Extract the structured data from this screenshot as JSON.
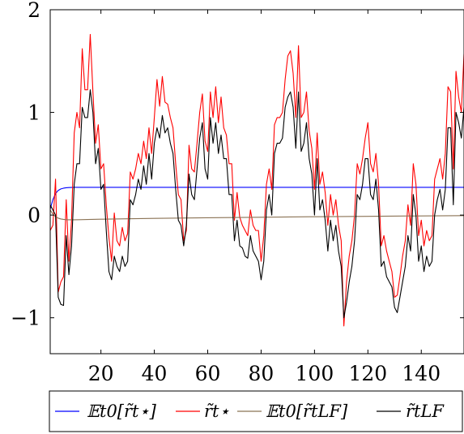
{
  "chart_data": {
    "type": "line",
    "title": "",
    "xlabel": "",
    "ylabel": "",
    "xlim": [
      1,
      156
    ],
    "ylim": [
      -1.35,
      2.0
    ],
    "grid": false,
    "legend_position": "bottom",
    "x_ticks": [
      20,
      40,
      60,
      80,
      100,
      120,
      140
    ],
    "y_ticks": [
      -1,
      0,
      1,
      2
    ],
    "x_tick_labels": [
      "20",
      "40",
      "60",
      "80",
      "100",
      "120",
      "140"
    ],
    "y_tick_labels": [
      "−1",
      "0",
      "1",
      "2"
    ],
    "series": [
      {
        "name": "𝔼t0[r̃t⋆]",
        "color": "#0000ff",
        "x": [
          1,
          2,
          3,
          4,
          5,
          6,
          7,
          8,
          10,
          15,
          20,
          156
        ],
        "y": [
          0.06,
          0.15,
          0.21,
          0.24,
          0.255,
          0.262,
          0.266,
          0.268,
          0.27,
          0.27,
          0.27,
          0.27
        ]
      },
      {
        "name": "r̃t⋆",
        "color": "#ff0000",
        "x": [
          1,
          2,
          3,
          4,
          5,
          6,
          7,
          8,
          9,
          10,
          11,
          12,
          13,
          14,
          15,
          16,
          17,
          18,
          19,
          20,
          21,
          22,
          23,
          24,
          25,
          26,
          27,
          28,
          29,
          30,
          31,
          32,
          33,
          34,
          35,
          36,
          37,
          38,
          39,
          40,
          41,
          42,
          43,
          44,
          45,
          46,
          47,
          48,
          49,
          50,
          51,
          52,
          53,
          54,
          55,
          56,
          57,
          58,
          59,
          60,
          61,
          62,
          63,
          64,
          65,
          66,
          67,
          68,
          69,
          70,
          71,
          72,
          73,
          74,
          75,
          76,
          77,
          78,
          79,
          80,
          81,
          82,
          83,
          84,
          85,
          86,
          87,
          88,
          89,
          90,
          91,
          92,
          93,
          94,
          95,
          96,
          97,
          98,
          99,
          100,
          101,
          102,
          103,
          104,
          105,
          106,
          107,
          108,
          109,
          110,
          111,
          112,
          113,
          114,
          115,
          116,
          117,
          118,
          119,
          120,
          121,
          122,
          123,
          124,
          125,
          126,
          127,
          128,
          129,
          130,
          131,
          132,
          133,
          134,
          135,
          136,
          137,
          138,
          139,
          140,
          141,
          142,
          143,
          144,
          145,
          146,
          147,
          148,
          149,
          150,
          151,
          152,
          153,
          154,
          155,
          156
        ],
        "y": [
          -0.15,
          -0.1,
          0.35,
          -0.75,
          -0.65,
          -0.6,
          0.15,
          -0.45,
          -0.05,
          0.8,
          1.0,
          0.85,
          1.62,
          1.22,
          1.22,
          1.76,
          1.2,
          0.7,
          0.88,
          0.45,
          0.5,
          0.1,
          -0.22,
          -0.45,
          0.02,
          -0.25,
          -0.3,
          -0.12,
          -0.25,
          -0.18,
          0.42,
          0.35,
          0.45,
          0.6,
          0.5,
          0.72,
          0.55,
          0.85,
          0.6,
          0.95,
          1.32,
          1.06,
          1.35,
          1.1,
          1.08,
          0.95,
          0.85,
          0.5,
          0.2,
          0.15,
          -0.25,
          -0.15,
          0.68,
          0.45,
          0.42,
          0.7,
          1.0,
          1.18,
          0.72,
          0.62,
          1.2,
          0.95,
          1.25,
          0.9,
          1.15,
          0.85,
          0.78,
          0.5,
          0.5,
          -0.05,
          0.22,
          -0.02,
          -0.1,
          -0.15,
          -0.2,
          0.05,
          -0.1,
          -0.15,
          -0.15,
          -0.45,
          -0.2,
          0.3,
          0.45,
          0.25,
          0.88,
          0.95,
          0.95,
          1.0,
          1.32,
          1.55,
          1.6,
          1.38,
          0.95,
          1.65,
          0.95,
          1.0,
          1.2,
          0.82,
          0.65,
          0.25,
          0.8,
          0.3,
          0.42,
          0.22,
          -0.1,
          0.2,
          0.0,
          0.15,
          -0.1,
          -0.25,
          -1.08,
          -0.65,
          -0.4,
          -0.25,
          0.0,
          0.5,
          0.4,
          0.55,
          0.75,
          0.9,
          0.5,
          0.42,
          0.6,
          0.3,
          -0.3,
          -0.2,
          -0.35,
          -0.45,
          -0.55,
          -0.8,
          -0.78,
          -0.6,
          -0.4,
          -0.25,
          0.1,
          -0.1,
          0.5,
          0.3,
          -0.2,
          -0.05,
          -0.3,
          -0.15,
          -0.25,
          -0.2,
          0.35,
          0.45,
          0.55,
          0.35,
          0.6,
          1.25,
          1.2,
          0.45,
          1.4,
          1.15,
          1.0,
          1.57
        ]
      },
      {
        "name": "𝔼t0[r̃tLF]",
        "color": "#8b7355",
        "x": [
          1,
          2,
          3,
          4,
          5,
          6,
          7,
          8,
          10,
          12,
          15,
          20,
          30,
          40,
          60,
          80,
          100,
          120,
          140,
          156
        ],
        "y": [
          0.05,
          0.01,
          -0.015,
          -0.03,
          -0.038,
          -0.042,
          -0.045,
          -0.046,
          -0.046,
          -0.045,
          -0.043,
          -0.04,
          -0.036,
          -0.032,
          -0.026,
          -0.021,
          -0.016,
          -0.012,
          -0.008,
          -0.005
        ]
      },
      {
        "name": "r̃tLF",
        "color": "#000000",
        "x": [
          1,
          2,
          3,
          4,
          5,
          6,
          7,
          8,
          9,
          10,
          11,
          12,
          13,
          14,
          15,
          16,
          17,
          18,
          19,
          20,
          21,
          22,
          23,
          24,
          25,
          26,
          27,
          28,
          29,
          30,
          31,
          32,
          33,
          34,
          35,
          36,
          37,
          38,
          39,
          40,
          41,
          42,
          43,
          44,
          45,
          46,
          47,
          48,
          49,
          50,
          51,
          52,
          53,
          54,
          55,
          56,
          57,
          58,
          59,
          60,
          61,
          62,
          63,
          64,
          65,
          66,
          67,
          68,
          69,
          70,
          71,
          72,
          73,
          74,
          75,
          76,
          77,
          78,
          79,
          80,
          81,
          82,
          83,
          84,
          85,
          86,
          87,
          88,
          89,
          90,
          91,
          92,
          93,
          94,
          95,
          96,
          97,
          98,
          99,
          100,
          101,
          102,
          103,
          104,
          105,
          106,
          107,
          108,
          109,
          110,
          111,
          112,
          113,
          114,
          115,
          116,
          117,
          118,
          119,
          120,
          121,
          122,
          123,
          124,
          125,
          126,
          127,
          128,
          129,
          130,
          131,
          132,
          133,
          134,
          135,
          136,
          137,
          138,
          139,
          140,
          141,
          142,
          143,
          144,
          145,
          146,
          147,
          148,
          149,
          150,
          151,
          152,
          153,
          154,
          155,
          156
        ],
        "y": [
          0.1,
          0.05,
          0.0,
          -0.8,
          -0.87,
          -0.88,
          -0.2,
          -0.58,
          -0.3,
          0.3,
          0.5,
          0.5,
          1.05,
          0.95,
          0.95,
          1.22,
          1.0,
          0.5,
          0.65,
          0.25,
          0.3,
          -0.15,
          -0.55,
          -0.63,
          -0.4,
          -0.5,
          -0.55,
          -0.4,
          -0.5,
          -0.45,
          0.15,
          0.1,
          0.2,
          0.35,
          0.25,
          0.48,
          0.3,
          0.6,
          0.35,
          0.7,
          0.85,
          0.75,
          0.97,
          0.8,
          0.85,
          0.7,
          0.6,
          0.25,
          -0.05,
          -0.1,
          -0.3,
          -0.1,
          0.4,
          0.2,
          0.15,
          0.45,
          0.75,
          0.9,
          0.45,
          0.35,
          0.95,
          0.7,
          0.9,
          0.6,
          0.78,
          0.55,
          0.55,
          0.2,
          0.2,
          -0.25,
          -0.05,
          -0.3,
          -0.32,
          -0.4,
          -0.42,
          -0.2,
          -0.35,
          -0.4,
          -0.45,
          -0.63,
          -0.45,
          0.05,
          0.2,
          0.0,
          0.6,
          0.7,
          0.7,
          0.75,
          1.05,
          1.15,
          1.2,
          1.05,
          0.65,
          1.2,
          0.62,
          0.7,
          0.9,
          0.55,
          0.4,
          0.0,
          0.55,
          0.05,
          0.15,
          -0.05,
          -0.35,
          -0.05,
          -0.25,
          -0.1,
          -0.35,
          -0.5,
          -1.0,
          -0.85,
          -0.65,
          -0.5,
          -0.25,
          0.2,
          0.15,
          0.3,
          0.55,
          0.55,
          0.2,
          0.15,
          0.35,
          0.05,
          -0.5,
          -0.45,
          -0.6,
          -0.65,
          -0.7,
          -0.9,
          -0.95,
          -0.8,
          -0.65,
          -0.5,
          -0.2,
          -0.35,
          0.2,
          0.0,
          -0.45,
          -0.3,
          -0.55,
          -0.4,
          -0.5,
          -0.45,
          0.0,
          0.15,
          0.25,
          0.05,
          0.25,
          0.85,
          0.85,
          0.1,
          1.0,
          0.9,
          0.75,
          1.05
        ]
      }
    ]
  },
  "legend": {
    "items": [
      {
        "label": "𝔼t0[r̃t⋆]",
        "color": "#0000ff"
      },
      {
        "label": "r̃t⋆",
        "color": "#ff0000"
      },
      {
        "label": "𝔼t0[r̃tLF]",
        "color": "#8b7355"
      },
      {
        "label": "r̃tLF",
        "color": "#000000"
      }
    ]
  }
}
